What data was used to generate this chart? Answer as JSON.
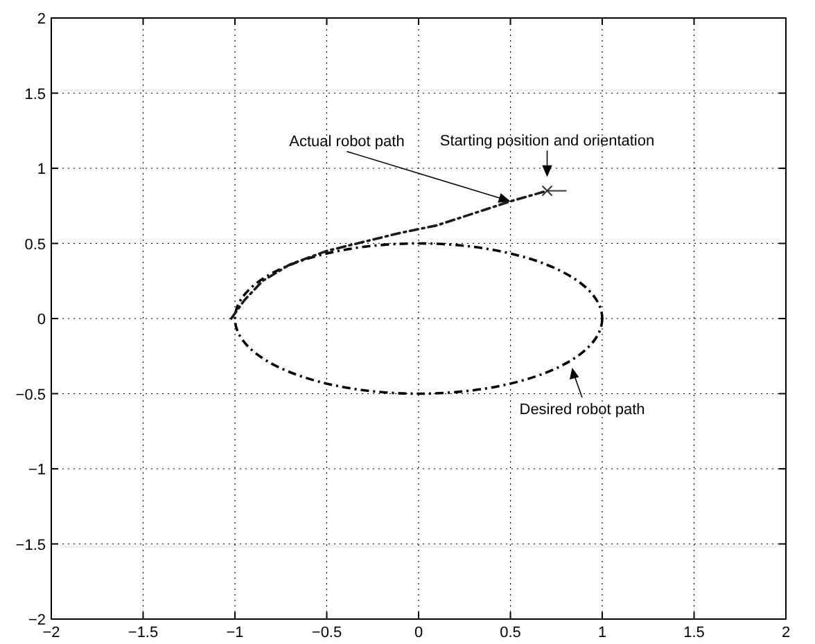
{
  "chart_data": {
    "type": "line",
    "xlim": [
      -2,
      2
    ],
    "ylim": [
      -2,
      2
    ],
    "xticks": [
      -2,
      -1.5,
      -1,
      -0.5,
      0,
      0.5,
      1,
      1.5,
      2
    ],
    "yticks": [
      -2,
      -1.5,
      -1,
      -0.5,
      0,
      0.5,
      1,
      1.5,
      2
    ],
    "grid": true,
    "line_style": "dashed",
    "marker": "none",
    "series": [
      {
        "color": "#1a1a1a",
        "x": [
          -1.02,
          -0.95,
          -0.85,
          -0.7,
          -0.5,
          -0.3,
          -0.1,
          0.1,
          0.3,
          0.5,
          0.7
        ],
        "values": [
          0,
          0.12,
          0.25,
          0.36,
          0.45,
          0.51,
          0.57,
          0.62,
          0.7,
          0.78,
          0.85
        ]
      },
      {
        "type": "scatter",
        "marker": "cross",
        "color": "#333333",
        "x": [
          0.7
        ],
        "values": [
          0.85
        ]
      }
    ],
    "annotations": [
      {
        "text": "Starting position and orientation",
        "x": 0.7,
        "y": 0.85
      },
      {
        "text": "Actual robot path",
        "x": 0.5,
        "y": 0.78
      },
      "Desired robot path"
    ]
  }
}
